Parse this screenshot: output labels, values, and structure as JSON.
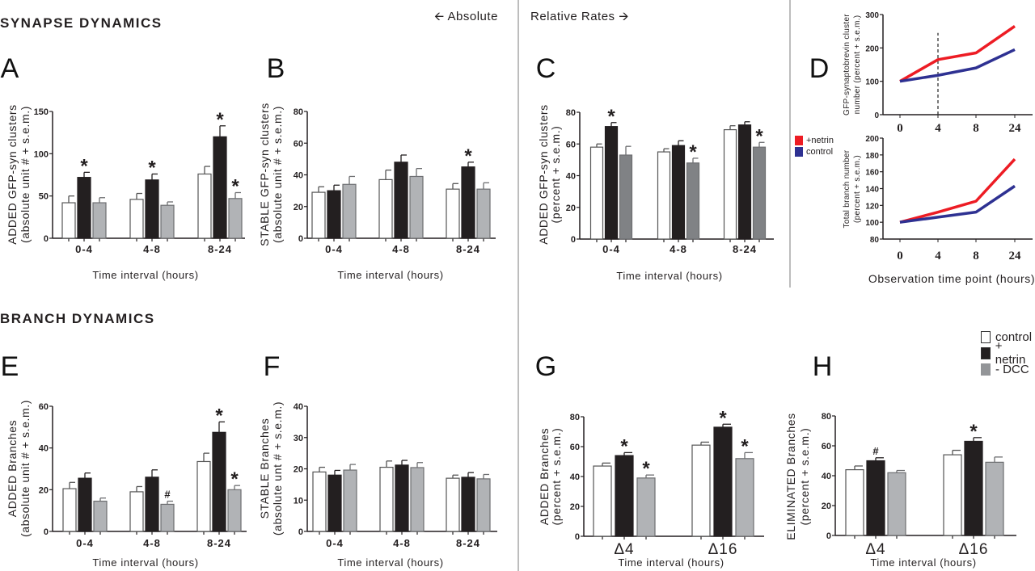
{
  "headers": {
    "synapse": "SYNAPSE DYNAMICS",
    "branch": "BRANCH DYNAMICS",
    "absolute": "Absolute",
    "relative": "Relative Rates"
  },
  "bar_legend": [
    {
      "label": "control",
      "color": "#ffffff"
    },
    {
      "label": "+ netrin",
      "color": "#231f20"
    },
    {
      "label": "- DCC",
      "color": "#939598"
    }
  ],
  "line_legend": [
    {
      "label": "+netrin",
      "color": "#ed1c24"
    },
    {
      "label": "control",
      "color": "#2e3192"
    }
  ],
  "chart_data": [
    {
      "id": "A",
      "letter": "A",
      "type": "bar",
      "ylabel": [
        "ADDED GFP-syn clusters",
        "(absolute unit # + s.e.m.)"
      ],
      "xlabel": "Time interval (hours)",
      "categories": [
        "0-4",
        "4-8",
        "8-24"
      ],
      "ylim": [
        0,
        150
      ],
      "yticks": [
        "0",
        "50",
        "100",
        "150"
      ],
      "series": [
        {
          "name": "control",
          "values": [
            42,
            46,
            76
          ],
          "errors": [
            8,
            7,
            9
          ],
          "marks": [
            "",
            "",
            ""
          ]
        },
        {
          "name": "+ netrin",
          "values": [
            72,
            69,
            120
          ],
          "errors": [
            6,
            7,
            13
          ],
          "marks": [
            "*",
            "*",
            "*"
          ]
        },
        {
          "name": "- DCC",
          "values": [
            42,
            39,
            47
          ],
          "errors": [
            6,
            4,
            7
          ],
          "marks": [
            "",
            "",
            "*"
          ]
        }
      ]
    },
    {
      "id": "B",
      "letter": "B",
      "type": "bar",
      "ylabel": [
        "STABLE GFP-syn clusters",
        "(absolute unit # + s.e.m.)"
      ],
      "xlabel": "Time interval (hours)",
      "categories": [
        "0-4",
        "4-8",
        "8-24"
      ],
      "ylim": [
        0,
        80
      ],
      "yticks": [
        "0",
        "20",
        "40",
        "60",
        "80"
      ],
      "series": [
        {
          "name": "control",
          "values": [
            29,
            37,
            31
          ],
          "errors": [
            3.5,
            6,
            3.5
          ],
          "marks": [
            "",
            "",
            ""
          ]
        },
        {
          "name": "+ netrin",
          "values": [
            30,
            48,
            45
          ],
          "errors": [
            3.5,
            4.5,
            3
          ],
          "marks": [
            "",
            "",
            "*"
          ]
        },
        {
          "name": "- DCC",
          "values": [
            34,
            39,
            31
          ],
          "errors": [
            5,
            5,
            4
          ],
          "marks": [
            "",
            "",
            ""
          ]
        }
      ]
    },
    {
      "id": "C",
      "letter": "C",
      "type": "bar",
      "ylabel": [
        "ADDED GFP-syn clusters",
        "(percent + s.e.m.)"
      ],
      "xlabel": "Time interval (hours)",
      "categories": [
        "0-4",
        "4-8",
        "8-24"
      ],
      "ylim": [
        0,
        80
      ],
      "yticks": [
        "0",
        "20",
        "40",
        "60",
        "80"
      ],
      "series": [
        {
          "name": "control",
          "values": [
            58,
            55,
            69
          ],
          "errors": [
            2,
            2,
            2.5
          ],
          "marks": [
            "",
            "",
            ""
          ]
        },
        {
          "name": "+ netrin",
          "values": [
            71,
            59,
            72
          ],
          "errors": [
            2.5,
            3,
            2
          ],
          "marks": [
            "*",
            "",
            ""
          ]
        },
        {
          "name": "- DCC",
          "values": [
            53,
            48,
            58
          ],
          "errors": [
            5.5,
            3,
            3
          ],
          "marks": [
            "",
            "*",
            "*"
          ]
        }
      ]
    },
    {
      "id": "D1",
      "letter": "D",
      "type": "line",
      "ylabel": [
        "GFP-synaptobrevin cluster",
        "number (percent + s.e.m.)"
      ],
      "xlabel": "",
      "categories": [
        "0",
        "4",
        "8",
        "24"
      ],
      "ylim": [
        0,
        300
      ],
      "yticks": [
        "0",
        "100",
        "200",
        "300"
      ],
      "vline_at": "4",
      "series": [
        {
          "name": "+netrin",
          "values": [
            100,
            165,
            185,
            265
          ]
        },
        {
          "name": "control",
          "values": [
            100,
            118,
            140,
            195
          ]
        }
      ]
    },
    {
      "id": "D2",
      "letter": "",
      "type": "line",
      "ylabel": [
        "Total branch number",
        "(percent + s.e.m.)"
      ],
      "xlabel": "Observation time point (hours)",
      "categories": [
        "0",
        "4",
        "8",
        "24"
      ],
      "ylim": [
        80,
        200
      ],
      "yticks": [
        "80",
        "100",
        "120",
        "140",
        "160",
        "180",
        "200"
      ],
      "series": [
        {
          "name": "+netrin",
          "values": [
            100,
            112,
            125,
            175
          ]
        },
        {
          "name": "control",
          "values": [
            100,
            106,
            112,
            143
          ]
        }
      ]
    },
    {
      "id": "E",
      "letter": "E",
      "type": "bar",
      "ylabel": [
        "ADDED Branches",
        "(absolute unit # + s.e.m.)"
      ],
      "xlabel": "Time interval (hours)",
      "categories": [
        "0-4",
        "4-8",
        "8-24"
      ],
      "ylim": [
        0,
        60
      ],
      "yticks": [
        "0",
        "20",
        "40",
        "60"
      ],
      "series": [
        {
          "name": "control",
          "values": [
            20.5,
            19,
            33.5
          ],
          "errors": [
            3,
            2.5,
            4
          ],
          "marks": [
            "",
            "",
            ""
          ]
        },
        {
          "name": "+ netrin",
          "values": [
            25.5,
            26,
            47.5
          ],
          "errors": [
            2.5,
            3.5,
            5
          ],
          "marks": [
            "",
            "",
            "*"
          ]
        },
        {
          "name": "- DCC",
          "values": [
            14.5,
            13,
            20
          ],
          "errors": [
            1.5,
            1.5,
            2
          ],
          "marks": [
            "",
            "#",
            "*"
          ]
        }
      ]
    },
    {
      "id": "F",
      "letter": "F",
      "type": "bar",
      "ylabel": [
        "STABLE Branches",
        "(absolute unt # + s.e.m.)"
      ],
      "xlabel": "Time interval (hours)",
      "categories": [
        "0-4",
        "4-8",
        "8-24"
      ],
      "ylim": [
        0,
        40
      ],
      "yticks": [
        "0",
        "10",
        "20",
        "30",
        "40"
      ],
      "series": [
        {
          "name": "control",
          "values": [
            19,
            20.5,
            17
          ],
          "errors": [
            1.5,
            2,
            1
          ],
          "marks": [
            "",
            "",
            ""
          ]
        },
        {
          "name": "+ netrin",
          "values": [
            18,
            21.2,
            17.3
          ],
          "errors": [
            1.5,
            1.5,
            1.5
          ],
          "marks": [
            "",
            "",
            ""
          ]
        },
        {
          "name": "- DCC",
          "values": [
            19.6,
            20.4,
            16.8
          ],
          "errors": [
            1.8,
            1.6,
            1.4
          ],
          "marks": [
            "",
            "",
            ""
          ]
        }
      ]
    },
    {
      "id": "G",
      "letter": "G",
      "type": "bar",
      "ylabel": [
        "ADDED Branches",
        "(percent + s.e.m.)"
      ],
      "xlabel": "Time interval (hours)",
      "categories": [
        "Δ4",
        "Δ16"
      ],
      "ylim": [
        0,
        80
      ],
      "yticks": [
        "0",
        "20",
        "40",
        "60",
        "80"
      ],
      "series": [
        {
          "name": "control",
          "values": [
            47,
            61
          ],
          "errors": [
            2,
            2
          ],
          "marks": [
            "",
            ""
          ]
        },
        {
          "name": "+ netrin",
          "values": [
            54,
            73
          ],
          "errors": [
            2,
            2
          ],
          "marks": [
            "*",
            "*"
          ]
        },
        {
          "name": "- DCC",
          "values": [
            39,
            52
          ],
          "errors": [
            2,
            4
          ],
          "marks": [
            "*",
            "*"
          ]
        }
      ]
    },
    {
      "id": "H",
      "letter": "H",
      "type": "bar",
      "ylabel": [
        "ELIMINATED Branches",
        "(percent + s.e.m.)"
      ],
      "xlabel": "Time interval (hours)",
      "categories": [
        "Δ4",
        "Δ16"
      ],
      "ylim": [
        0,
        80
      ],
      "yticks": [
        "0",
        "20",
        "40",
        "60",
        "80"
      ],
      "series": [
        {
          "name": "control",
          "values": [
            44,
            54
          ],
          "errors": [
            2.5,
            3
          ],
          "marks": [
            "",
            ""
          ]
        },
        {
          "name": "+ netrin",
          "values": [
            50,
            63
          ],
          "errors": [
            2,
            2.5
          ],
          "marks": [
            "#",
            "*"
          ]
        },
        {
          "name": "- DCC",
          "values": [
            42,
            49
          ],
          "errors": [
            1.5,
            3.5
          ],
          "marks": [
            "",
            ""
          ]
        }
      ]
    }
  ]
}
